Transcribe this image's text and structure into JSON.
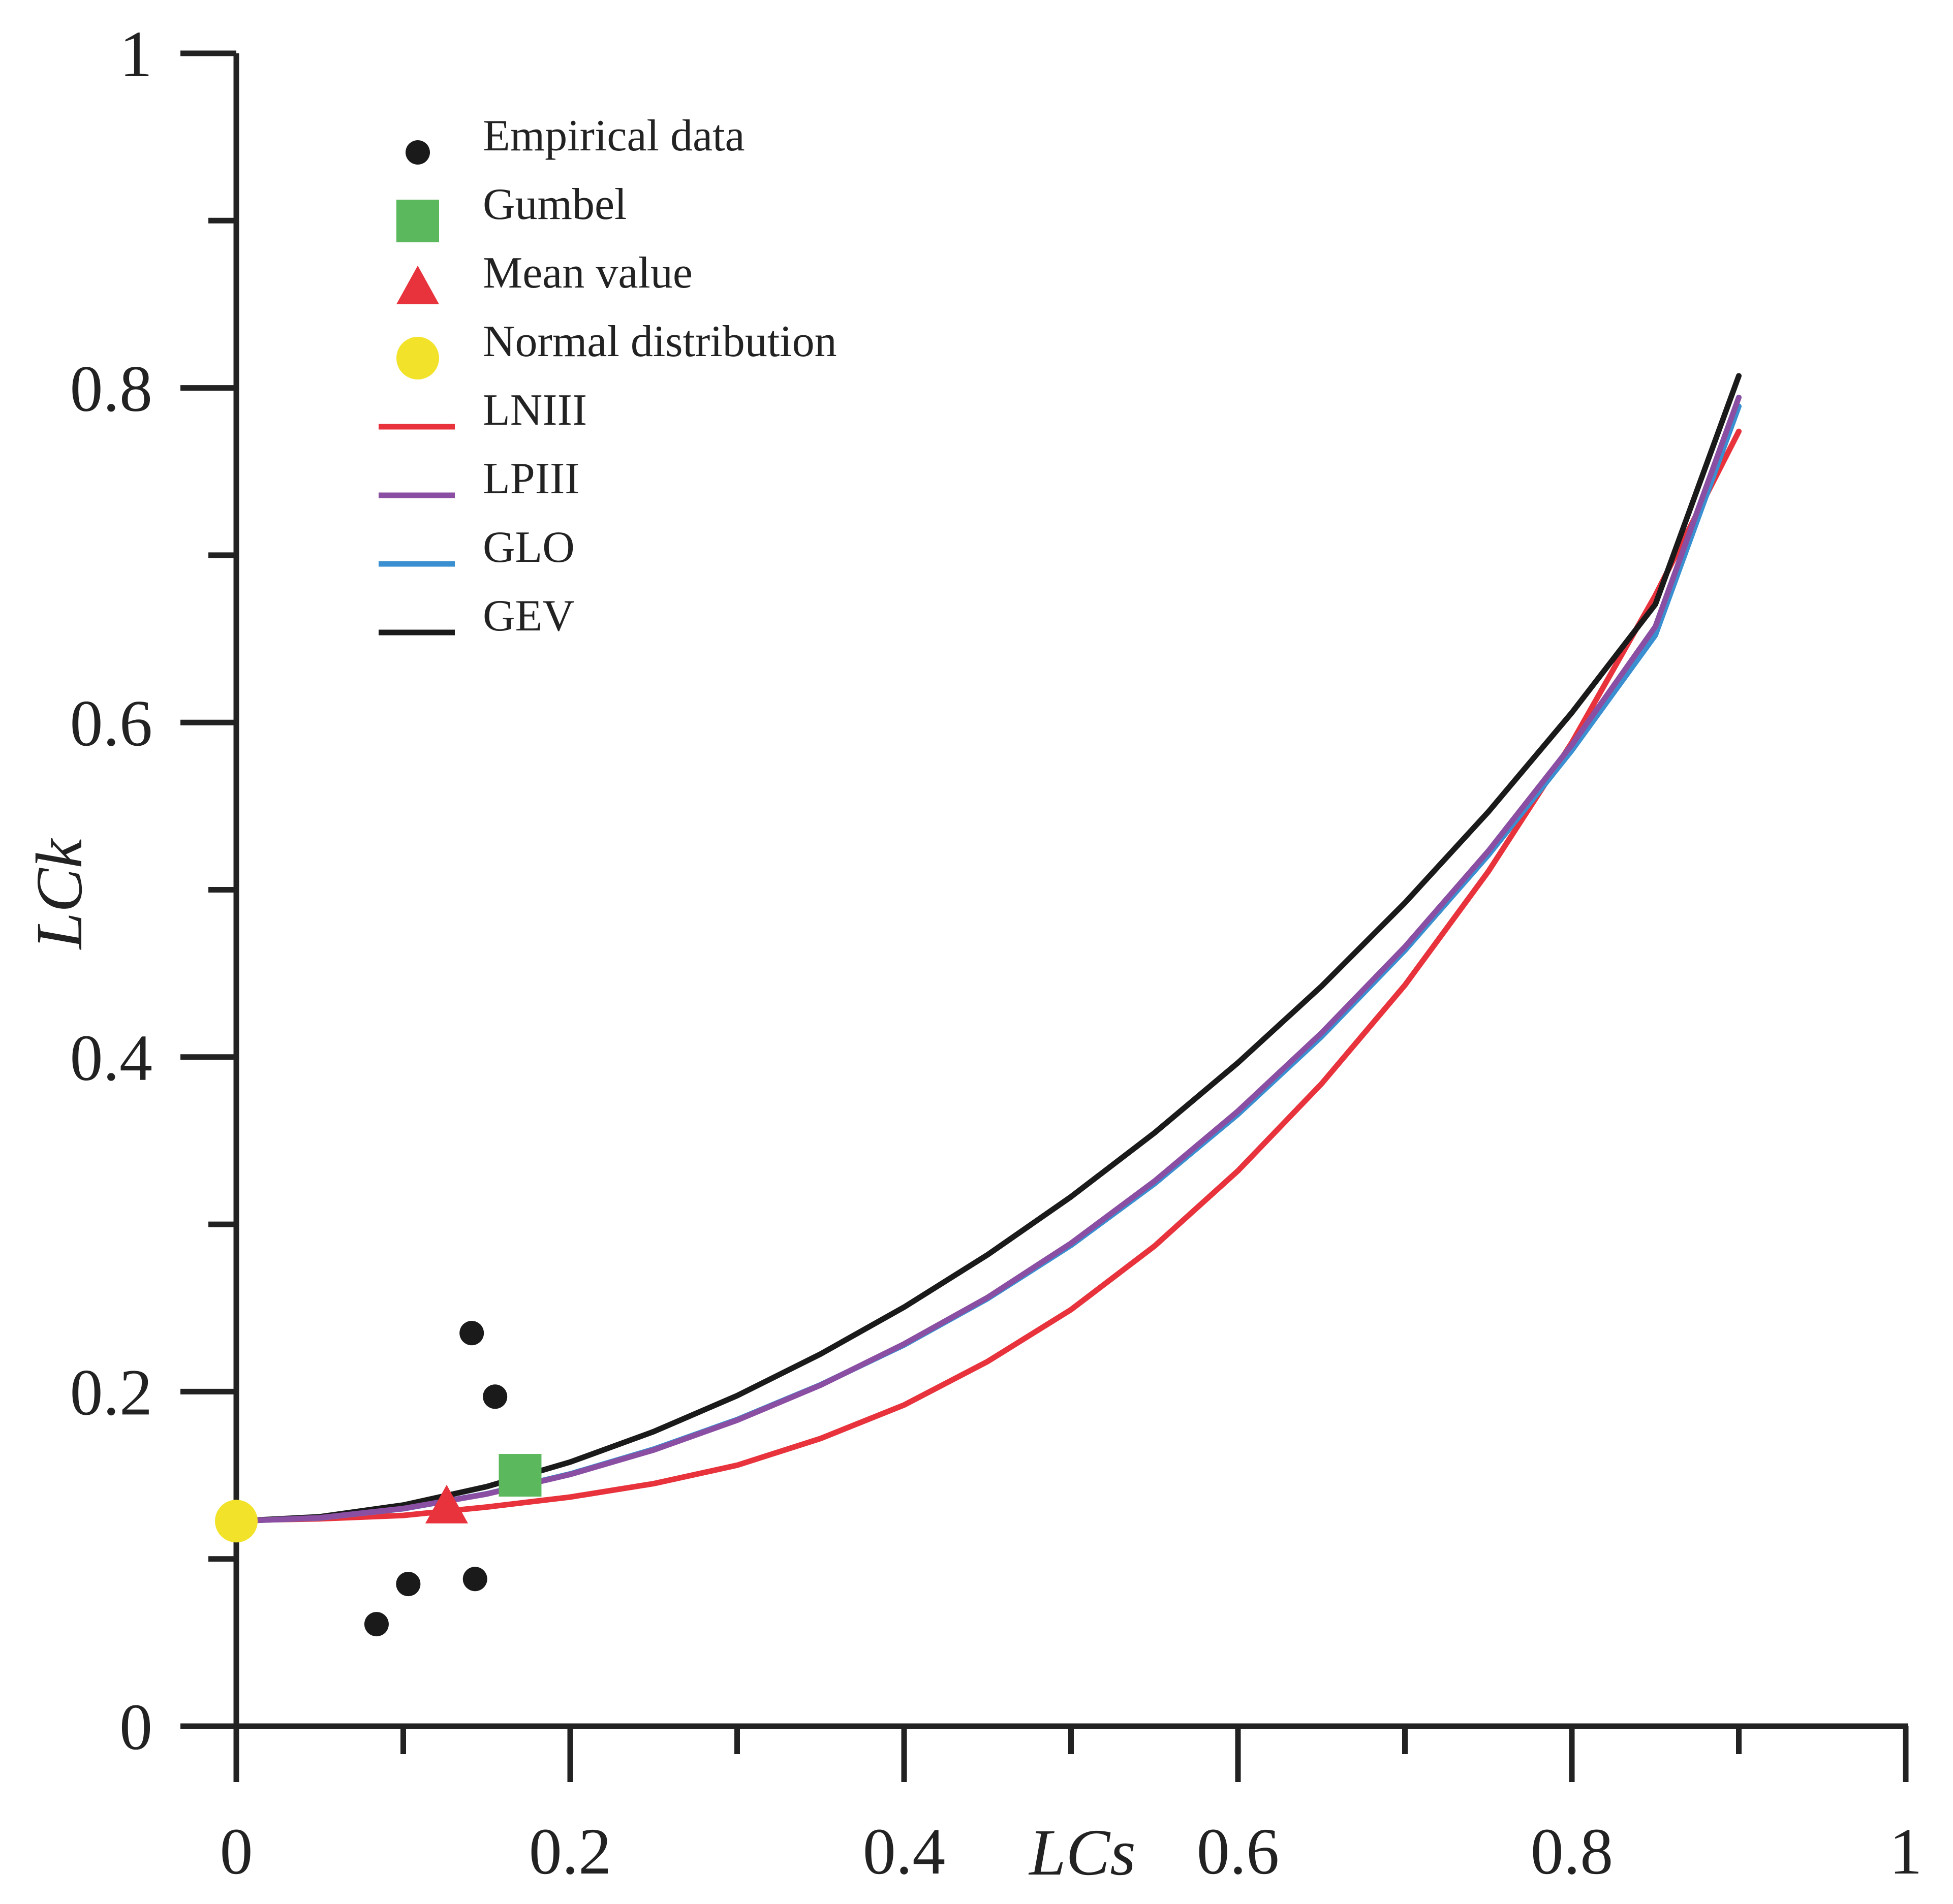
{
  "chart_data": {
    "type": "line",
    "title": "",
    "xlabel": "LCs",
    "ylabel": "LCk",
    "xlim": [
      0,
      1
    ],
    "ylim": [
      0,
      1
    ],
    "x_ticks": [
      0,
      0.2,
      0.4,
      0.6,
      0.8,
      1
    ],
    "x_tick_labels": [
      "0",
      "0.2",
      "0.4",
      "0.6",
      "0.8",
      "1"
    ],
    "x_minor_ticks": [
      0.1,
      0.3,
      0.5,
      0.7,
      0.9
    ],
    "y_ticks": [
      0,
      0.2,
      0.4,
      0.6,
      0.8,
      1
    ],
    "y_tick_labels": [
      "0",
      "0.2",
      "0.4",
      "0.6",
      "0.8",
      "1"
    ],
    "y_minor_ticks": [
      0.1,
      0.3,
      0.5,
      0.7,
      0.9
    ],
    "grid": false,
    "legend_position": "top-left",
    "series": [
      {
        "name": "LNIII",
        "kind": "line",
        "color": "#e8323c",
        "x": [
          0,
          0.05,
          0.1,
          0.15,
          0.2,
          0.25,
          0.3,
          0.35,
          0.4,
          0.45,
          0.5,
          0.55,
          0.6,
          0.65,
          0.7,
          0.75,
          0.8,
          0.85,
          0.9
        ],
        "y": [
          0.123,
          0.124,
          0.126,
          0.131,
          0.137,
          0.145,
          0.156,
          0.172,
          0.192,
          0.218,
          0.249,
          0.287,
          0.332,
          0.384,
          0.443,
          0.511,
          0.588,
          0.676,
          0.774
        ]
      },
      {
        "name": "LPIII",
        "kind": "line",
        "color": "#8a4fa3",
        "x": [
          0,
          0.05,
          0.1,
          0.15,
          0.2,
          0.25,
          0.3,
          0.35,
          0.4,
          0.45,
          0.5,
          0.55,
          0.6,
          0.65,
          0.7,
          0.75,
          0.8,
          0.85,
          0.9
        ],
        "y": [
          0.1226,
          0.1246,
          0.1301,
          0.1388,
          0.1505,
          0.1651,
          0.1829,
          0.2039,
          0.2285,
          0.2563,
          0.2887,
          0.3258,
          0.3677,
          0.4144,
          0.4659,
          0.5232,
          0.5866,
          0.6573,
          0.7943
        ]
      },
      {
        "name": "GLO",
        "kind": "line",
        "color": "#3a8fd0",
        "x": [
          0,
          0.05,
          0.1,
          0.15,
          0.2,
          0.25,
          0.3,
          0.35,
          0.4,
          0.45,
          0.5,
          0.55,
          0.6,
          0.65,
          0.7,
          0.75,
          0.8,
          0.85,
          0.9
        ],
        "y": [
          0.1226,
          0.1245,
          0.13,
          0.1389,
          0.1508,
          0.1656,
          0.1833,
          0.2041,
          0.2279,
          0.2556,
          0.2875,
          0.3243,
          0.3658,
          0.4122,
          0.4638,
          0.5208,
          0.5834,
          0.6522,
          0.789
        ]
      },
      {
        "name": "GEV",
        "kind": "line",
        "color": "#1a1a1a",
        "x": [
          0,
          0.05,
          0.1,
          0.15,
          0.2,
          0.25,
          0.3,
          0.35,
          0.4,
          0.45,
          0.5,
          0.55,
          0.6,
          0.65,
          0.7,
          0.75,
          0.8,
          0.85,
          0.9
        ],
        "y": [
          0.1226,
          0.1252,
          0.1322,
          0.1432,
          0.1579,
          0.1761,
          0.1976,
          0.2225,
          0.2505,
          0.2818,
          0.3165,
          0.3547,
          0.3966,
          0.4423,
          0.4922,
          0.5466,
          0.6059,
          0.6706,
          0.8072
        ]
      },
      {
        "name": "Empirical data",
        "kind": "scatter",
        "marker": "circle",
        "color": "#1a1a1a",
        "x": [
          0.084,
          0.103,
          0.141,
          0.143,
          0.155
        ],
        "y": [
          0.061,
          0.085,
          0.235,
          0.088,
          0.197
        ]
      },
      {
        "name": "Gumbel",
        "kind": "scatter",
        "marker": "square",
        "color": "#5cb85c",
        "x": [
          0.17
        ],
        "y": [
          0.15
        ]
      },
      {
        "name": "Mean value",
        "kind": "scatter",
        "marker": "triangle",
        "color": "#e8323c",
        "x": [
          0.126
        ],
        "y": [
          0.13
        ]
      },
      {
        "name": "Normal distribution",
        "kind": "scatter",
        "marker": "circle",
        "color": "#f2e32a",
        "x": [
          0
        ],
        "y": [
          0.1226
        ]
      }
    ],
    "legend_order": [
      "Empirical data",
      "Gumbel",
      "Mean value",
      "Normal distribution",
      "LNIII",
      "LPIII",
      "GLO",
      "GEV"
    ]
  }
}
